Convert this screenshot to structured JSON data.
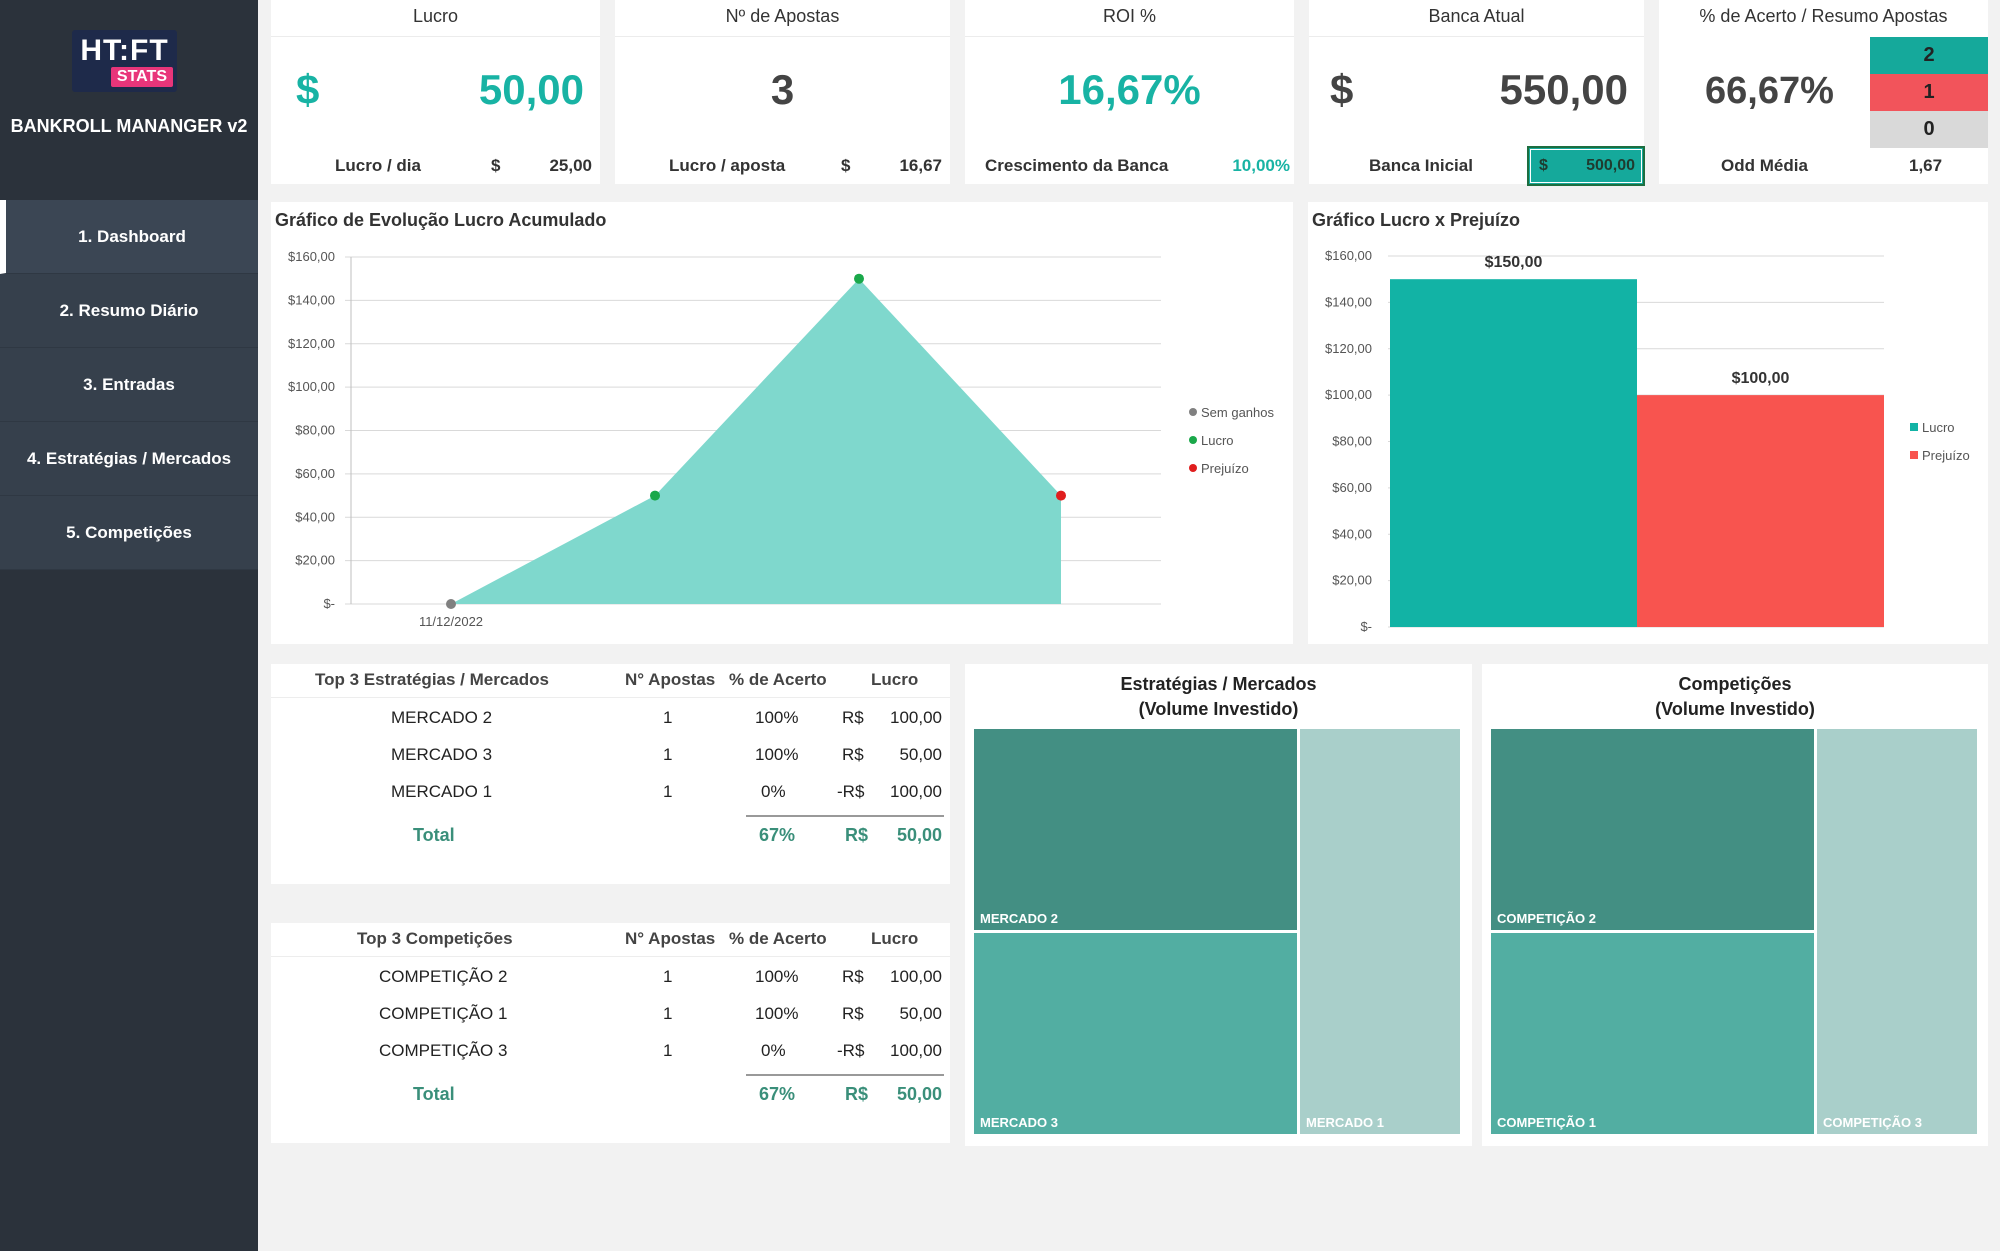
{
  "app": {
    "logo_main": "HT:FT",
    "logo_sub": "STATS",
    "title": "BANKROLL MANANGER v2"
  },
  "nav": {
    "items": [
      {
        "label": "1. Dashboard"
      },
      {
        "label": "2. Resumo Diário"
      },
      {
        "label": "3. Entradas"
      },
      {
        "label": "4. Estratégias / Mercados"
      },
      {
        "label": "5. Competições"
      }
    ]
  },
  "kpis": {
    "lucro": {
      "title": "Lucro",
      "currency": "$",
      "value": "50,00",
      "foot_label": "Lucro / dia",
      "foot_currency": "$",
      "foot_value": "25,00"
    },
    "apostas": {
      "title": "Nº de Apostas",
      "value": "3",
      "foot_label": "Lucro / aposta",
      "foot_currency": "$",
      "foot_value": "16,67"
    },
    "roi": {
      "title": "ROI %",
      "value": "16,67%",
      "foot_label": "Crescimento da Banca",
      "foot_value": "10,00%"
    },
    "banca": {
      "title": "Banca Atual",
      "currency": "$",
      "value": "550,00",
      "foot_label": "Banca Inicial",
      "foot_currency": "$",
      "foot_value": "500,00"
    },
    "acerto": {
      "title": "% de Acerto / Resumo Apostas",
      "value": "66,67%",
      "greens": "2",
      "reds": "1",
      "voids": "0",
      "foot_label": "Odd Média",
      "foot_value": "1,67"
    }
  },
  "colors": {
    "teal": "#18b3a4",
    "area": "#7fd8cd",
    "bar_green": "#12b3a5",
    "bar_red": "#f8544f",
    "status_green": "#15a99b",
    "status_red": "#f2545b",
    "status_gray": "#d9d9d9"
  },
  "chart_area": {
    "title": "Gráfico de Evolução Lucro Acumulado",
    "yticks": [
      "$160,00",
      "$140,00",
      "$120,00",
      "$100,00",
      "$80,00",
      "$60,00",
      "$40,00",
      "$20,00",
      "$-"
    ],
    "xtick": "11/12/2022",
    "legend": [
      "Sem ganhos",
      "Lucro",
      "Prejuízo"
    ]
  },
  "chart_bar": {
    "title": "Gráfico Lucro x Prejuízo",
    "yticks": [
      "$160,00",
      "$140,00",
      "$120,00",
      "$100,00",
      "$80,00",
      "$60,00",
      "$40,00",
      "$20,00",
      "$-"
    ],
    "legend": [
      "Lucro",
      "Prejuízo"
    ],
    "labels": [
      "$150,00",
      "$100,00"
    ]
  },
  "chart_data": [
    {
      "type": "area",
      "title": "Gráfico de Evolução Lucro Acumulado",
      "x": [
        "11/12/2022",
        "",
        "",
        ""
      ],
      "values": [
        0,
        50,
        150,
        50
      ],
      "point_status": [
        "Sem ganhos",
        "Lucro",
        "Lucro",
        "Prejuízo"
      ],
      "ylim": [
        0,
        160
      ],
      "legend": [
        "Sem ganhos",
        "Lucro",
        "Prejuízo"
      ]
    },
    {
      "type": "bar",
      "title": "Gráfico Lucro x Prejuízo",
      "categories": [
        "Lucro",
        "Prejuízo"
      ],
      "values": [
        150,
        100
      ],
      "ylim": [
        0,
        160
      ]
    }
  ],
  "table_strategies": {
    "headers": [
      "Top 3 Estratégias / Mercados",
      "N° Apostas",
      "% de Acerto",
      "Lucro"
    ],
    "rows": [
      {
        "name": "MERCADO 2",
        "n": "1",
        "pct": "100%",
        "cur": "R$",
        "val": "100,00"
      },
      {
        "name": "MERCADO 3",
        "n": "1",
        "pct": "100%",
        "cur": "R$",
        "val": "50,00"
      },
      {
        "name": "MERCADO 1",
        "n": "1",
        "pct": "0%",
        "cur": "-R$",
        "val": "100,00"
      }
    ],
    "total": {
      "label": "Total",
      "pct": "67%",
      "cur": "R$",
      "val": "50,00"
    }
  },
  "table_competitions": {
    "headers": [
      "Top 3 Competições",
      "N° Apostas",
      "% de Acerto",
      "Lucro"
    ],
    "rows": [
      {
        "name": "COMPETIÇÃO 2",
        "n": "1",
        "pct": "100%",
        "cur": "R$",
        "val": "100,00"
      },
      {
        "name": "COMPETIÇÃO 1",
        "n": "1",
        "pct": "100%",
        "cur": "R$",
        "val": "50,00"
      },
      {
        "name": "COMPETIÇÃO 3",
        "n": "1",
        "pct": "0%",
        "cur": "-R$",
        "val": "100,00"
      }
    ],
    "total": {
      "label": "Total",
      "pct": "67%",
      "cur": "R$",
      "val": "50,00"
    }
  },
  "treemap_strategies": {
    "title_line1": "Estratégias / Mercados",
    "title_line2": "(Volume Investido)",
    "cells": [
      "MERCADO 2",
      "MERCADO 3",
      "MERCADO 1"
    ]
  },
  "treemap_competitions": {
    "title_line1": "Competições",
    "title_line2": "(Volume Investido)",
    "cells": [
      "COMPETIÇÃO 2",
      "COMPETIÇÃO 1",
      "COMPETIÇÃO 3"
    ]
  }
}
